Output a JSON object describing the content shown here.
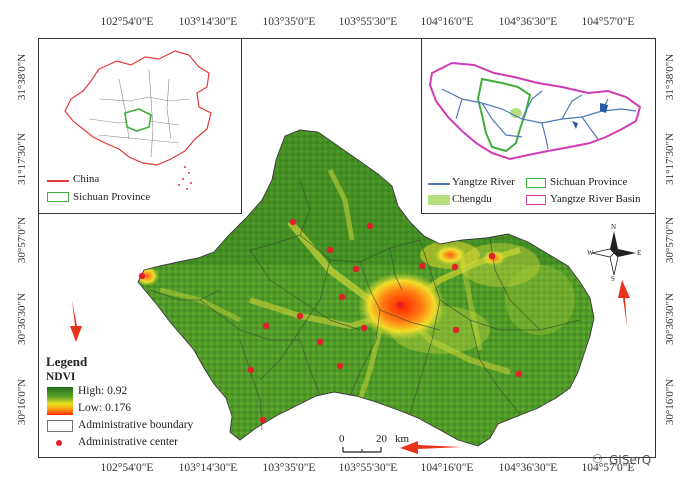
{
  "map": {
    "lon_ticks_top": [
      "102°54'0\"E",
      "103°14'30\"E",
      "103°35'0\"E",
      "103°55'30\"E",
      "104°16'0\"E",
      "104°36'30\"E",
      "104°57'0\"E"
    ],
    "lon_ticks_bottom": [
      "102°54'0\"E",
      "103°14'30\"E",
      "103°35'0\"E",
      "103°55'30\"E",
      "104°16'0\"E",
      "104°36'30\"E",
      "104°57'0\"E"
    ],
    "lat_ticks": [
      "31°38'0\"N",
      "31°17'30\"N",
      "30°57'0\"N",
      "30°36'30\"N",
      "30°16'0\"N"
    ],
    "colors": {
      "ndvi_high": "#1f6b1a",
      "ndvi_mid": "#e8e020",
      "ndvi_low": "#ff2a00",
      "center_dot": "#e0202a",
      "arrow": "#e8321c"
    }
  },
  "inset_china": {
    "legend": [
      {
        "label": "China",
        "color": "#e03a3a"
      },
      {
        "label": "Sichuan Province",
        "color": "#3fae3a"
      }
    ]
  },
  "inset_yangtze": {
    "legend": [
      {
        "label": "Yangtze River",
        "color": "#4d79b8"
      },
      {
        "label": "Sichuan Province",
        "color": "#3fae3a"
      },
      {
        "label": "Chengdu",
        "color": "#b6e07f"
      },
      {
        "label": "Yangtze River Basin",
        "color": "#d13bb5"
      }
    ]
  },
  "legend": {
    "title": "Legend",
    "ndvi_title": "NDVI",
    "high": "High: 0.92",
    "low": "Low: 0.176",
    "boundary": "Administrative boundary",
    "center": "Administrative center"
  },
  "scalebar": {
    "zero": "0",
    "twenty": "20",
    "unit": "km"
  },
  "compass": {
    "n": "N",
    "s": "S",
    "e": "E",
    "w": "W"
  },
  "watermark": "GISerQ"
}
